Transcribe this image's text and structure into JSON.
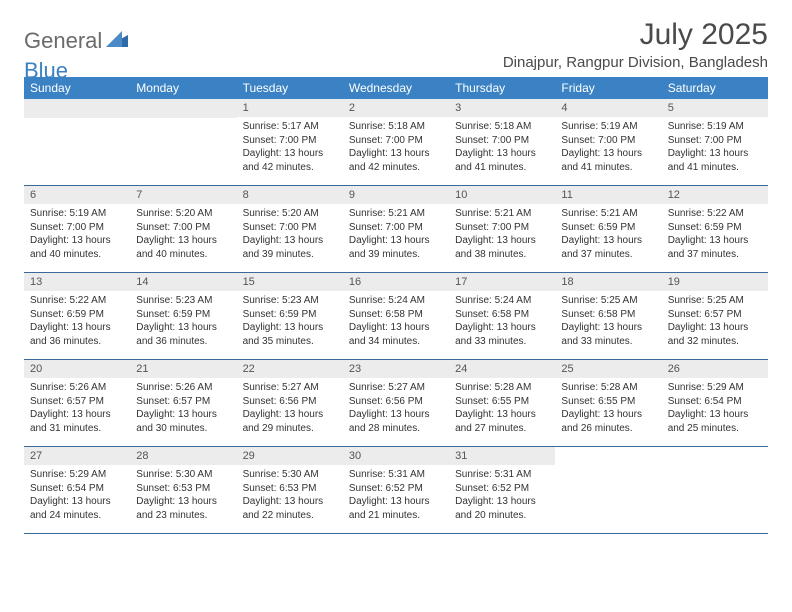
{
  "logo": {
    "general": "General",
    "blue": "Blue"
  },
  "title": "July 2025",
  "location": "Dinajpur, Rangpur Division, Bangladesh",
  "header_bg": "#3b82c4",
  "header_text_color": "#ffffff",
  "daynum_bg": "#ececec",
  "border_color": "#3b6a9a",
  "text_color": "#333333",
  "title_color": "#4a4a4a",
  "weekdays": [
    "Sunday",
    "Monday",
    "Tuesday",
    "Wednesday",
    "Thursday",
    "Friday",
    "Saturday"
  ],
  "first_weekday_index": 2,
  "days": [
    {
      "n": 1,
      "sunrise": "5:17 AM",
      "sunset": "7:00 PM",
      "dl": "13 hours and 42 minutes."
    },
    {
      "n": 2,
      "sunrise": "5:18 AM",
      "sunset": "7:00 PM",
      "dl": "13 hours and 42 minutes."
    },
    {
      "n": 3,
      "sunrise": "5:18 AM",
      "sunset": "7:00 PM",
      "dl": "13 hours and 41 minutes."
    },
    {
      "n": 4,
      "sunrise": "5:19 AM",
      "sunset": "7:00 PM",
      "dl": "13 hours and 41 minutes."
    },
    {
      "n": 5,
      "sunrise": "5:19 AM",
      "sunset": "7:00 PM",
      "dl": "13 hours and 41 minutes."
    },
    {
      "n": 6,
      "sunrise": "5:19 AM",
      "sunset": "7:00 PM",
      "dl": "13 hours and 40 minutes."
    },
    {
      "n": 7,
      "sunrise": "5:20 AM",
      "sunset": "7:00 PM",
      "dl": "13 hours and 40 minutes."
    },
    {
      "n": 8,
      "sunrise": "5:20 AM",
      "sunset": "7:00 PM",
      "dl": "13 hours and 39 minutes."
    },
    {
      "n": 9,
      "sunrise": "5:21 AM",
      "sunset": "7:00 PM",
      "dl": "13 hours and 39 minutes."
    },
    {
      "n": 10,
      "sunrise": "5:21 AM",
      "sunset": "7:00 PM",
      "dl": "13 hours and 38 minutes."
    },
    {
      "n": 11,
      "sunrise": "5:21 AM",
      "sunset": "6:59 PM",
      "dl": "13 hours and 37 minutes."
    },
    {
      "n": 12,
      "sunrise": "5:22 AM",
      "sunset": "6:59 PM",
      "dl": "13 hours and 37 minutes."
    },
    {
      "n": 13,
      "sunrise": "5:22 AM",
      "sunset": "6:59 PM",
      "dl": "13 hours and 36 minutes."
    },
    {
      "n": 14,
      "sunrise": "5:23 AM",
      "sunset": "6:59 PM",
      "dl": "13 hours and 36 minutes."
    },
    {
      "n": 15,
      "sunrise": "5:23 AM",
      "sunset": "6:59 PM",
      "dl": "13 hours and 35 minutes."
    },
    {
      "n": 16,
      "sunrise": "5:24 AM",
      "sunset": "6:58 PM",
      "dl": "13 hours and 34 minutes."
    },
    {
      "n": 17,
      "sunrise": "5:24 AM",
      "sunset": "6:58 PM",
      "dl": "13 hours and 33 minutes."
    },
    {
      "n": 18,
      "sunrise": "5:25 AM",
      "sunset": "6:58 PM",
      "dl": "13 hours and 33 minutes."
    },
    {
      "n": 19,
      "sunrise": "5:25 AM",
      "sunset": "6:57 PM",
      "dl": "13 hours and 32 minutes."
    },
    {
      "n": 20,
      "sunrise": "5:26 AM",
      "sunset": "6:57 PM",
      "dl": "13 hours and 31 minutes."
    },
    {
      "n": 21,
      "sunrise": "5:26 AM",
      "sunset": "6:57 PM",
      "dl": "13 hours and 30 minutes."
    },
    {
      "n": 22,
      "sunrise": "5:27 AM",
      "sunset": "6:56 PM",
      "dl": "13 hours and 29 minutes."
    },
    {
      "n": 23,
      "sunrise": "5:27 AM",
      "sunset": "6:56 PM",
      "dl": "13 hours and 28 minutes."
    },
    {
      "n": 24,
      "sunrise": "5:28 AM",
      "sunset": "6:55 PM",
      "dl": "13 hours and 27 minutes."
    },
    {
      "n": 25,
      "sunrise": "5:28 AM",
      "sunset": "6:55 PM",
      "dl": "13 hours and 26 minutes."
    },
    {
      "n": 26,
      "sunrise": "5:29 AM",
      "sunset": "6:54 PM",
      "dl": "13 hours and 25 minutes."
    },
    {
      "n": 27,
      "sunrise": "5:29 AM",
      "sunset": "6:54 PM",
      "dl": "13 hours and 24 minutes."
    },
    {
      "n": 28,
      "sunrise": "5:30 AM",
      "sunset": "6:53 PM",
      "dl": "13 hours and 23 minutes."
    },
    {
      "n": 29,
      "sunrise": "5:30 AM",
      "sunset": "6:53 PM",
      "dl": "13 hours and 22 minutes."
    },
    {
      "n": 30,
      "sunrise": "5:31 AM",
      "sunset": "6:52 PM",
      "dl": "13 hours and 21 minutes."
    },
    {
      "n": 31,
      "sunrise": "5:31 AM",
      "sunset": "6:52 PM",
      "dl": "13 hours and 20 minutes."
    }
  ]
}
